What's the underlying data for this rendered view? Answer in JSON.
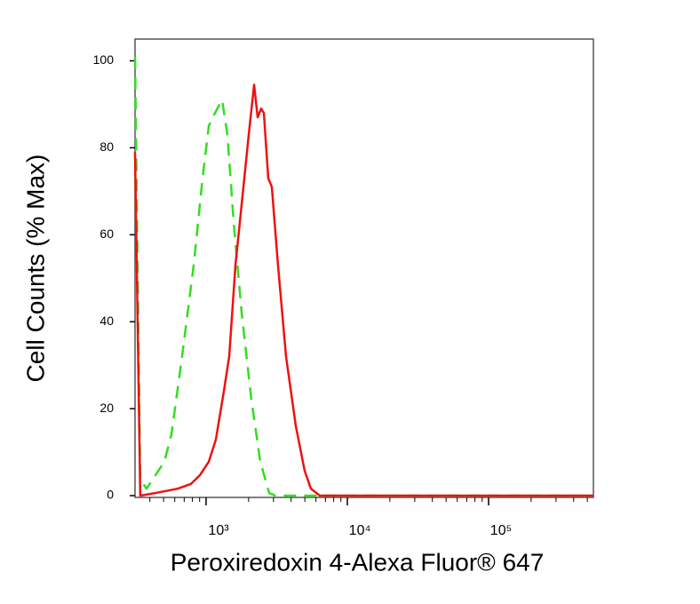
{
  "chart_data": {
    "type": "line",
    "x_label": "Peroxiredoxin 4-Alexa Fluor® 647",
    "y_label": "Cell Counts (% Max)",
    "xscale": "log",
    "xlim": [
      314,
      552000
    ],
    "xticks": [
      {
        "value": 1000,
        "label": "10³"
      },
      {
        "value": 10000,
        "label": "10⁴"
      },
      {
        "value": 100000,
        "label": "10⁵"
      }
    ],
    "xminorticks": [
      400,
      500,
      600,
      700,
      800,
      900,
      2000,
      3000,
      4000,
      5000,
      6000,
      7000,
      8000,
      9000,
      20000,
      30000,
      40000,
      50000,
      60000,
      70000,
      80000,
      90000,
      200000,
      300000,
      400000,
      500000
    ],
    "ylim": [
      0,
      105
    ],
    "yticks": [
      0,
      20,
      40,
      60,
      80,
      100
    ],
    "series": [
      {
        "color": "#33dd22",
        "dashed": true,
        "x": [
          314,
          342,
          379,
          438,
          506,
          568,
          676,
          817,
          944,
          1045,
          1156,
          1298,
          1416,
          1567,
          1786,
          2094,
          2420,
          2796,
          3095,
          552000
        ],
        "values": [
          101,
          3.7,
          1.6,
          4.7,
          7.8,
          14,
          32,
          53,
          73,
          85,
          88,
          91,
          83,
          63,
          42,
          22,
          7.8,
          0.6,
          0,
          0
        ]
      },
      {
        "color": "#ee1111",
        "dashed": false,
        "x": [
          314,
          342,
          438,
          629,
          782,
          904,
          1045,
          1173,
          1336,
          1458,
          1614,
          1786,
          2004,
          2188,
          2317,
          2455,
          2565,
          2755,
          2920,
          3230,
          3681,
          4317,
          4989,
          5521,
          6383,
          552000
        ],
        "values": [
          79,
          0,
          0.6,
          1.6,
          2.7,
          4.7,
          7.8,
          12.9,
          24,
          32,
          53,
          67,
          83,
          94.5,
          87,
          89,
          88,
          73,
          71,
          53,
          32,
          16,
          5.7,
          1.6,
          0,
          0
        ]
      }
    ]
  }
}
